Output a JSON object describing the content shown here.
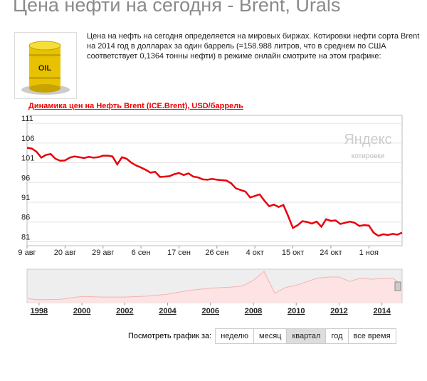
{
  "header": {
    "title": "Цена нефти на сегодня - Brent, Urals"
  },
  "intro": "Цена на нефть на сегодня определяется на мировых биржах. Котировки нефти сорта Brent на 2014 год в долларах за один баррель (=158.988 литров, что в среднем по США соответствует 0,1364 тонны нефти) в режиме онлайн смотрите на этом графике:",
  "image_label": "OIL",
  "chart_data": [
    {
      "type": "line",
      "title": "Динамика цен на Нефть Brent (ICE.Brent), USD/баррель",
      "categories": [
        "9 авг",
        null,
        null,
        null,
        null,
        null,
        null,
        null,
        "20 авг",
        null,
        null,
        null,
        null,
        null,
        null,
        null,
        "29 авг",
        null,
        null,
        null,
        null,
        null,
        null,
        null,
        "6 сен",
        null,
        null,
        null,
        null,
        null,
        null,
        null,
        "17 сен",
        null,
        null,
        null,
        null,
        null,
        null,
        null,
        "26 сен",
        null,
        null,
        null,
        null,
        null,
        null,
        null,
        "4 окт",
        null,
        null,
        null,
        null,
        null,
        null,
        null,
        "15 окт",
        null,
        null,
        null,
        null,
        null,
        null,
        null,
        "24 окт",
        null,
        null,
        null,
        null,
        null,
        null,
        null,
        "1 ноя",
        null,
        null,
        null,
        null,
        null,
        null,
        null
      ],
      "values": [
        104.8,
        104.6,
        103.8,
        102.3,
        103.0,
        103.2,
        102.0,
        101.5,
        101.6,
        102.3,
        102.6,
        102.4,
        102.2,
        102.5,
        102.3,
        102.4,
        102.8,
        102.8,
        102.6,
        100.6,
        102.4,
        102.0,
        101.0,
        100.3,
        99.8,
        99.2,
        98.5,
        98.7,
        97.4,
        97.5,
        97.6,
        98.1,
        98.4,
        97.9,
        98.3,
        97.5,
        97.3,
        96.8,
        96.7,
        96.9,
        96.7,
        96.6,
        96.5,
        95.8,
        94.5,
        94.1,
        93.7,
        92.2,
        92.6,
        93.0,
        91.4,
        90.0,
        90.4,
        89.8,
        90.3,
        87.5,
        84.5,
        85.2,
        86.2,
        86.0,
        85.6,
        86.1,
        84.8,
        86.7,
        86.3,
        86.4,
        85.5,
        85.8,
        86.1,
        85.8,
        85.0,
        85.2,
        85.1,
        83.3,
        82.5,
        82.9,
        82.7,
        83.0,
        82.8,
        83.3
      ],
      "color": "#e8000b",
      "ylim": [
        80,
        113
      ],
      "yticks": [
        81,
        86,
        91,
        96,
        101,
        106,
        111
      ],
      "grid": true,
      "watermark": {
        "title": "Яндекс",
        "subtitle": "котировки"
      }
    },
    {
      "type": "area",
      "x": [
        1997.5,
        1998,
        1999,
        2000,
        2001,
        2002,
        2003,
        2004,
        2005,
        2006,
        2007,
        2007.5,
        2008,
        2008.5,
        2009,
        2009.5,
        2010,
        2011,
        2011.5,
        2012,
        2012.5,
        2013,
        2013.5,
        2014,
        2014.5,
        2014.9
      ],
      "values": [
        18,
        13,
        15,
        28,
        25,
        25,
        29,
        38,
        55,
        65,
        70,
        75,
        100,
        140,
        42,
        68,
        78,
        110,
        115,
        115,
        95,
        110,
        105,
        108,
        110,
        83
      ],
      "color": "#f3b3b3",
      "xlim": [
        1997.44,
        2014.94
      ],
      "xticks": [
        1998,
        2000,
        2002,
        2004,
        2006,
        2008,
        2010,
        2012,
        2014
      ],
      "ylim": [
        0,
        150
      ]
    }
  ],
  "controls": {
    "label": "Посмотреть график за:",
    "buttons": [
      "неделю",
      "месяц",
      "квартал",
      "год",
      "все время"
    ],
    "active": 2
  }
}
